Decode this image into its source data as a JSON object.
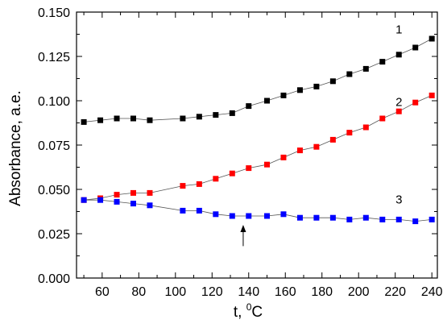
{
  "chart_data": {
    "type": "scatter",
    "xlabel": "t, ",
    "xlabel_unit_sup": "0",
    "xlabel_unit": "C",
    "ylabel": "Absorbance, a.e.",
    "xlim": [
      46,
      243
    ],
    "ylim": [
      0,
      0.15
    ],
    "x_ticks": [
      60,
      80,
      100,
      120,
      140,
      160,
      180,
      200,
      220,
      240
    ],
    "y_ticks": [
      0.0,
      0.025,
      0.05,
      0.075,
      0.1,
      0.125,
      0.15
    ],
    "y_tick_labels": [
      "0.000",
      "0.025",
      "0.050",
      "0.075",
      "0.100",
      "0.125",
      "0.150"
    ],
    "grid": false,
    "arrow": {
      "x": 137,
      "y_from": 0.018,
      "y_to": 0.03
    },
    "series": [
      {
        "name": "1",
        "color": "#000000",
        "x": [
          50,
          59,
          68,
          77,
          86,
          104,
          113,
          122,
          131,
          140,
          150,
          159,
          168,
          177,
          186,
          195,
          204,
          213,
          222,
          231,
          240
        ],
        "y": [
          0.088,
          0.089,
          0.09,
          0.09,
          0.089,
          0.09,
          0.091,
          0.092,
          0.093,
          0.097,
          0.1,
          0.103,
          0.106,
          0.108,
          0.111,
          0.115,
          0.118,
          0.122,
          0.126,
          0.13,
          0.135
        ]
      },
      {
        "name": "2",
        "color": "#ff0000",
        "x": [
          50,
          59,
          68,
          77,
          86,
          104,
          113,
          122,
          131,
          140,
          150,
          159,
          168,
          177,
          186,
          195,
          204,
          213,
          222,
          231,
          240
        ],
        "y": [
          0.044,
          0.045,
          0.047,
          0.048,
          0.048,
          0.052,
          0.053,
          0.056,
          0.059,
          0.062,
          0.064,
          0.068,
          0.072,
          0.074,
          0.078,
          0.082,
          0.085,
          0.09,
          0.094,
          0.099,
          0.103
        ]
      },
      {
        "name": "3",
        "color": "#0000ff",
        "x": [
          50,
          59,
          68,
          77,
          86,
          104,
          113,
          122,
          131,
          140,
          150,
          159,
          168,
          177,
          186,
          195,
          204,
          213,
          222,
          231,
          240
        ],
        "y": [
          0.044,
          0.044,
          0.043,
          0.042,
          0.041,
          0.038,
          0.038,
          0.036,
          0.035,
          0.035,
          0.035,
          0.036,
          0.034,
          0.034,
          0.034,
          0.033,
          0.034,
          0.033,
          0.033,
          0.032,
          0.033
        ]
      }
    ]
  }
}
